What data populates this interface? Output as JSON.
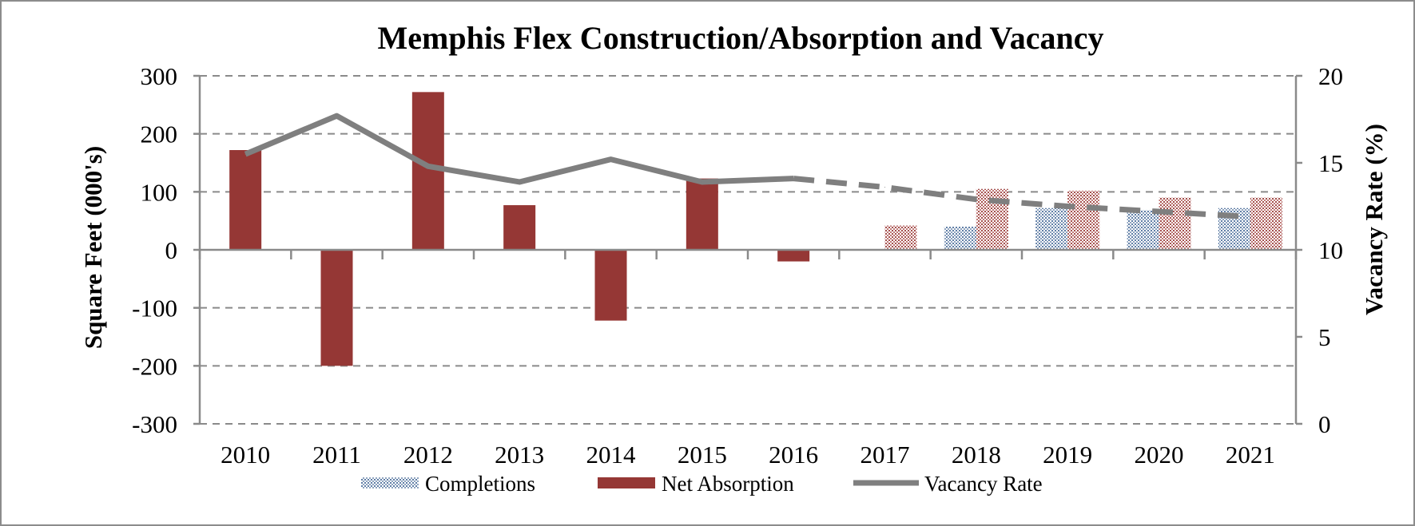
{
  "chart_data": {
    "type": "bar",
    "title": "Memphis Flex Construction/Absorption and Vacancy",
    "categories": [
      "2010",
      "2011",
      "2012",
      "2013",
      "2014",
      "2015",
      "2016",
      "2017",
      "2018",
      "2019",
      "2020",
      "2021"
    ],
    "forecast_start_index": 7,
    "y_left": {
      "label": "Square Feet (000's)",
      "ylim": [
        -300,
        300
      ],
      "ticks": [
        "300",
        "200",
        "100",
        "0",
        "-100",
        "-200",
        "-300"
      ],
      "tick_values": [
        300,
        200,
        100,
        0,
        -100,
        -200,
        -300
      ]
    },
    "y_right": {
      "label": "Vacancy Rate (%)",
      "ylim": [
        0,
        20
      ],
      "ticks": [
        "20",
        "15",
        "10",
        "5",
        "0"
      ],
      "tick_values": [
        20,
        15,
        10,
        5,
        0
      ]
    },
    "grid": true,
    "legend_position": "bottom",
    "series": [
      {
        "name": "Completions",
        "type": "bar",
        "axis": "left",
        "color": "#8ea3bf",
        "values": [
          0,
          0,
          0,
          0,
          0,
          0,
          0,
          0,
          40,
          72,
          68,
          72
        ]
      },
      {
        "name": "Net Absorption",
        "type": "bar",
        "axis": "left",
        "color": "#953735",
        "values": [
          172,
          -200,
          272,
          77,
          -122,
          123,
          -20,
          42,
          105,
          102,
          90,
          90
        ]
      },
      {
        "name": "Vacancy Rate",
        "type": "line",
        "axis": "right",
        "color": "#7f7f7f",
        "values": [
          15.5,
          17.7,
          14.8,
          13.9,
          15.2,
          13.9,
          14.1,
          13.6,
          12.9,
          12.5,
          12.2,
          11.9
        ]
      }
    ]
  }
}
